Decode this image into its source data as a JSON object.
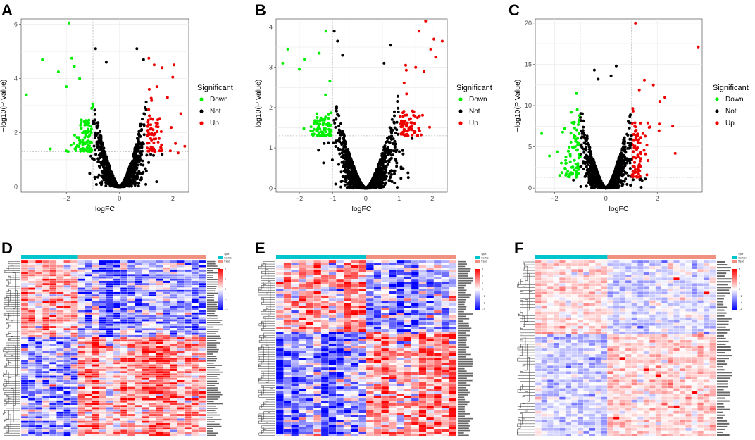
{
  "colors": {
    "down": "#00ee00",
    "not": "#000000",
    "up": "#ee0000",
    "control": "#00c5cd",
    "treat": "#f0907f",
    "heat_low": "#0000ff",
    "heat_mid": "#ffffff",
    "heat_high": "#ff0000",
    "grid": "#ebebeb"
  },
  "legend": {
    "title": "Significant",
    "items": [
      "Down",
      "Not",
      "Up"
    ]
  },
  "heat_legend": {
    "title": "Type",
    "items": [
      "Control",
      "Treat"
    ]
  },
  "chart_data": [
    {
      "panel": "A",
      "type": "scatter",
      "xlabel": "logFC",
      "ylabel": "−log10(P Value)",
      "xlim": [
        -3.7,
        2.6
      ],
      "ylim": [
        -0.2,
        6.2
      ],
      "xticks": [
        -2,
        0,
        2
      ],
      "yticks": [
        0,
        2,
        4,
        6
      ],
      "fc_cut": 1,
      "p_cut": 1.3,
      "vmax": 4.6,
      "outliers_down": [
        [
          -1.9,
          6.05
        ],
        [
          -3.5,
          3.4
        ],
        [
          -2.9,
          4.7
        ],
        [
          -2.6,
          1.4
        ],
        [
          -1.8,
          4.75
        ],
        [
          -1.7,
          4.45
        ],
        [
          -2.3,
          4.25
        ],
        [
          -1.5,
          4.0
        ],
        [
          -2.0,
          3.7
        ]
      ],
      "outliers_up": [
        [
          1.3,
          4.5
        ],
        [
          1.6,
          4.4
        ],
        [
          2.05,
          4.5
        ],
        [
          2.45,
          1.5
        ],
        [
          2.1,
          1.6
        ],
        [
          2.2,
          1.25
        ],
        [
          1.4,
          3.7
        ],
        [
          1.8,
          3.3
        ],
        [
          2.0,
          4.05
        ],
        [
          1.1,
          4.75
        ],
        [
          2.3,
          2.7
        ]
      ],
      "outliers_not": [
        [
          -0.9,
          5.1
        ],
        [
          0.65,
          5.1
        ],
        [
          -0.5,
          4.6
        ],
        [
          0.9,
          4.7
        ],
        [
          1.6,
          1.2
        ]
      ]
    },
    {
      "panel": "B",
      "type": "scatter",
      "xlabel": "logFC",
      "ylabel": "−log10(P Value)",
      "xlim": [
        -2.7,
        2.45
      ],
      "ylim": [
        -0.1,
        4.2
      ],
      "xticks": [
        -2,
        -1,
        0,
        1,
        2
      ],
      "yticks": [
        0,
        1,
        2,
        3,
        4
      ],
      "fc_cut": 1,
      "p_cut": 1.3,
      "vmax": 3.5,
      "outliers_down": [
        [
          -2.35,
          3.45
        ],
        [
          -2.5,
          3.1
        ],
        [
          -1.2,
          3.9
        ],
        [
          -1.85,
          3.2
        ],
        [
          -1.4,
          3.35
        ],
        [
          -2.0,
          2.95
        ]
      ],
      "outliers_up": [
        [
          1.8,
          4.15
        ],
        [
          2.3,
          3.65
        ],
        [
          1.6,
          3.9
        ],
        [
          2.1,
          3.25
        ],
        [
          1.95,
          3.45
        ],
        [
          1.5,
          3.0
        ],
        [
          1.75,
          2.9
        ],
        [
          2.05,
          3.7
        ],
        [
          1.2,
          3.05
        ]
      ],
      "outliers_not": [
        [
          -0.95,
          3.9
        ],
        [
          -0.85,
          3.65
        ],
        [
          0.75,
          3.55
        ],
        [
          -0.7,
          3.3
        ],
        [
          0.55,
          3.1
        ]
      ]
    },
    {
      "panel": "C",
      "type": "scatter",
      "xlabel": "logFC",
      "ylabel": "−log10(P Value)",
      "xlim": [
        -2.75,
        3.75
      ],
      "ylim": [
        -0.5,
        20.5
      ],
      "xticks": [
        -2,
        0,
        2
      ],
      "yticks": [
        0,
        5,
        10,
        15,
        20
      ],
      "fc_cut": 1,
      "p_cut": 1.3,
      "vmax": 14.5,
      "outliers_down": [
        [
          -2.5,
          6.6
        ],
        [
          -1.9,
          4.4
        ],
        [
          -1.35,
          9.2
        ],
        [
          -2.2,
          3.9
        ],
        [
          -1.6,
          7.2
        ],
        [
          -1.25,
          7.8
        ]
      ],
      "outliers_up": [
        [
          1.15,
          20.0
        ],
        [
          3.6,
          17.1
        ],
        [
          1.85,
          12.5
        ],
        [
          2.1,
          10.5
        ],
        [
          1.5,
          13.1
        ],
        [
          2.6,
          7.5
        ],
        [
          2.3,
          11.0
        ],
        [
          2.7,
          4.2
        ],
        [
          1.3,
          11.9
        ]
      ],
      "outliers_not": [
        [
          0.4,
          14.8
        ],
        [
          -0.45,
          14.3
        ],
        [
          0.2,
          13.6
        ],
        [
          -0.3,
          13.2
        ]
      ]
    },
    {
      "panel": "D",
      "type": "heatmap",
      "rows": 78,
      "cols": 26,
      "control_cols": 8,
      "up_rows": 34,
      "scale": [
        -2,
        -1,
        0,
        1,
        2
      ]
    },
    {
      "panel": "E",
      "type": "heatmap",
      "rows": 74,
      "cols": 24,
      "control_cols": 12,
      "up_rows": 30,
      "scale": [
        -3,
        -2,
        -1,
        0,
        1,
        2,
        3
      ]
    },
    {
      "panel": "F",
      "type": "heatmap",
      "rows": 62,
      "cols": 30,
      "control_cols": 12,
      "up_rows": 26,
      "scale": [
        -6,
        -4,
        -2,
        0,
        2,
        4,
        6
      ]
    }
  ]
}
